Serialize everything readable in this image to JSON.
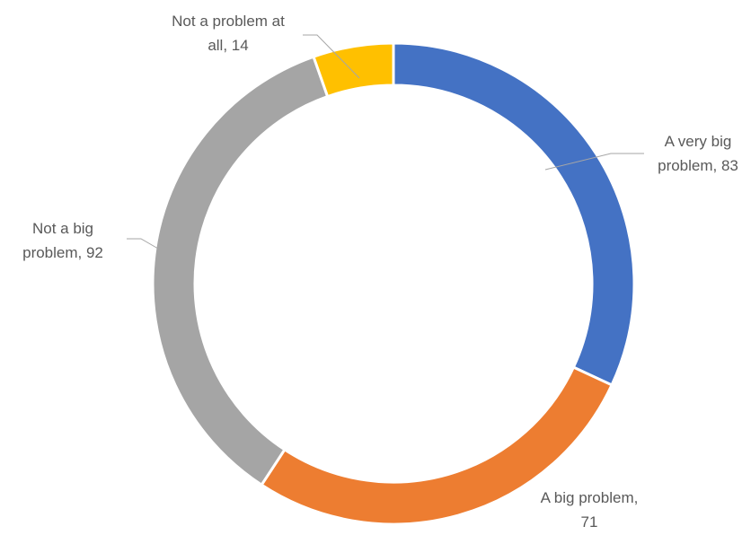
{
  "chart_data": {
    "type": "pie",
    "subtype": "doughnut",
    "categories": [
      "A very big problem",
      "A big problem",
      "Not a big problem",
      "Not a problem at all"
    ],
    "values": [
      83,
      71,
      92,
      14
    ],
    "colors": [
      "#4472C4",
      "#ED7D31",
      "#A5A5A5",
      "#FFC000"
    ],
    "data_labels": [
      [
        "A very big",
        "problem, 83"
      ],
      [
        "A big problem,",
        "71"
      ],
      [
        "Not a big",
        "problem, 92"
      ],
      [
        "Not a problem at",
        "all, 14"
      ]
    ],
    "legend": "none"
  }
}
